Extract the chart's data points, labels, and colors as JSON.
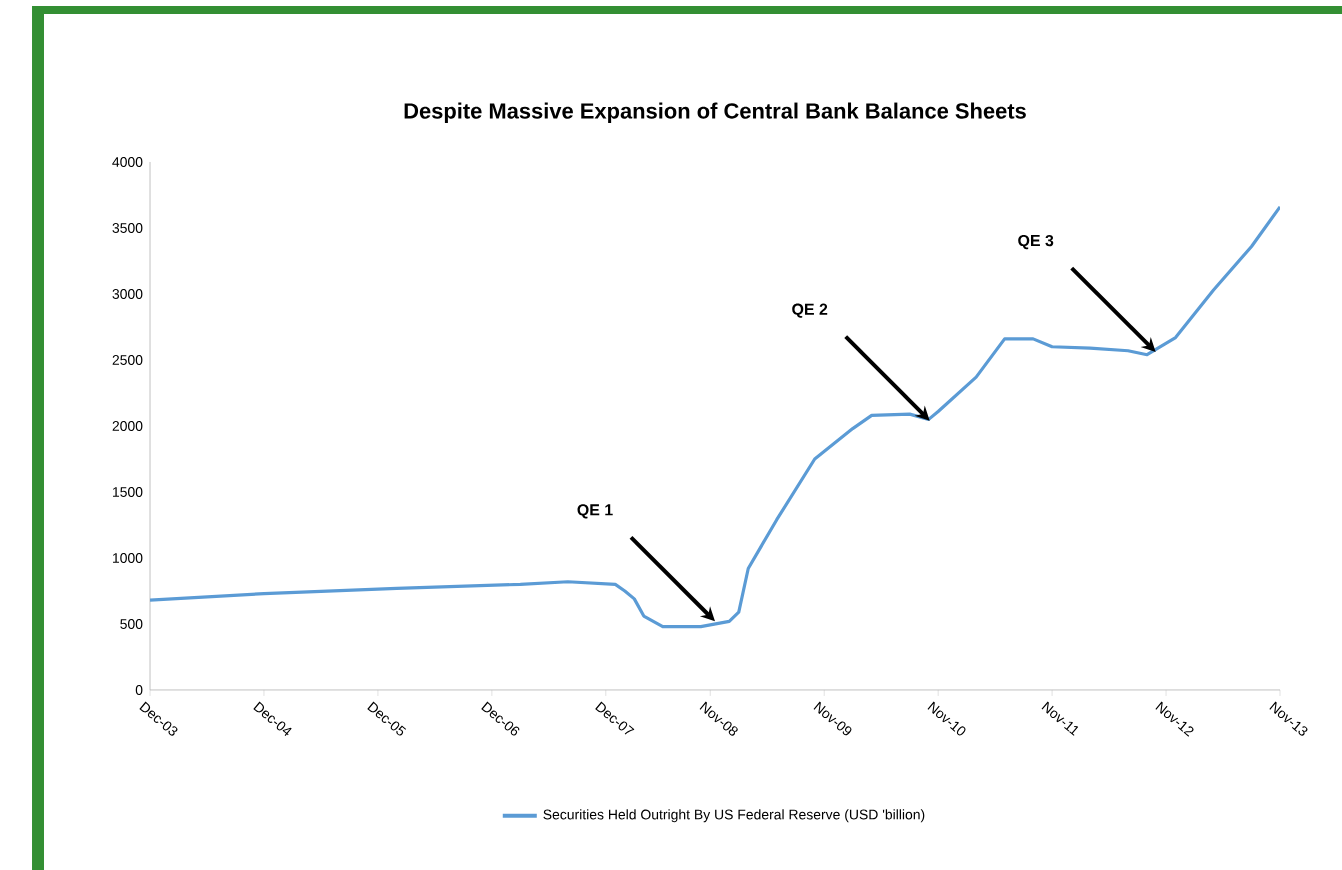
{
  "chart_data": {
    "type": "line",
    "title": "Despite Massive Expansion of Central Bank Balance Sheets",
    "x": [
      "2003-12",
      "2004-12",
      "2006-02",
      "2007-03",
      "2007-08",
      "2008-01",
      "2008-02",
      "2008-03",
      "2008-04",
      "2008-06",
      "2008-10",
      "2009-01",
      "2009-02",
      "2009-03",
      "2009-06",
      "2009-10",
      "2010-02",
      "2010-04",
      "2010-08",
      "2010-10",
      "2010-11",
      "2011-03",
      "2011-06",
      "2011-09",
      "2011-11",
      "2012-03",
      "2012-07",
      "2012-09",
      "2012-12",
      "2013-04",
      "2013-08",
      "2013-11"
    ],
    "series": [
      {
        "name": "Securities Held Outright By US Federal Reserve (USD 'billion)",
        "color": "#5b9bd5",
        "values": [
          680,
          730,
          770,
          800,
          820,
          800,
          750,
          690,
          560,
          480,
          480,
          520,
          590,
          920,
          1290,
          1750,
          1980,
          2080,
          2090,
          2050,
          2110,
          2370,
          2660,
          2660,
          2600,
          2590,
          2570,
          2540,
          2670,
          3030,
          3360,
          3660
        ]
      }
    ],
    "xlim": [
      "2003-12",
      "2013-11"
    ],
    "xticks": [
      {
        "value": "2003-12",
        "label": "Dec-03"
      },
      {
        "value": "2004-12",
        "label": "Dec-04"
      },
      {
        "value": "2005-12",
        "label": "Dec-05"
      },
      {
        "value": "2006-12",
        "label": "Dec-06"
      },
      {
        "value": "2007-12",
        "label": "Dec-07"
      },
      {
        "value": "2008-11",
        "label": "Nov-08"
      },
      {
        "value": "2009-11",
        "label": "Nov-09"
      },
      {
        "value": "2010-11",
        "label": "Nov-10"
      },
      {
        "value": "2011-11",
        "label": "Nov-11"
      },
      {
        "value": "2012-11",
        "label": "Nov-12"
      },
      {
        "value": "2013-11",
        "label": "Nov-13"
      }
    ],
    "ylim": [
      0,
      4000
    ],
    "yticks": [
      0,
      500,
      1000,
      1500,
      2000,
      2500,
      3000,
      3500,
      4000
    ],
    "annotations": [
      "QE 1",
      "QE 2",
      "QE 3"
    ],
    "legend": "bottom",
    "marker": "none",
    "line_style": "solid",
    "grid": false
  }
}
